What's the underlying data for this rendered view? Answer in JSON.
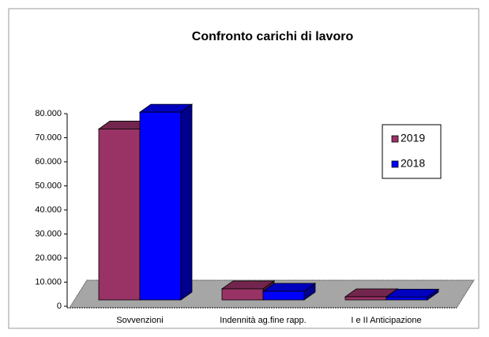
{
  "chart_data": {
    "type": "bar3d",
    "title": "Confronto carichi  di lavoro",
    "categories": [
      "Sovvenzioni",
      "Indennità ag.fine rapp.",
      "I e II Anticipazione"
    ],
    "series": [
      {
        "name": "2019",
        "color": "#993366",
        "values": [
          71000,
          4600,
          1300
        ]
      },
      {
        "name": "2018",
        "color": "#0000ff",
        "values": [
          78000,
          3600,
          1200
        ]
      }
    ],
    "ylim": [
      0,
      80000
    ],
    "yticks": [
      0,
      {
        "value": 10000,
        "label": "10.000"
      },
      {
        "value": 20000,
        "label": "20.000"
      },
      {
        "value": 30000,
        "label": "30.000"
      },
      {
        "value": 40000,
        "label": "40.000"
      },
      {
        "value": 50000,
        "label": "50.000"
      },
      {
        "value": 60000,
        "label": "60.000"
      },
      {
        "value": 70000,
        "label": "70.000"
      },
      {
        "value": 80000,
        "label": "80.000"
      }
    ],
    "legend": "right"
  }
}
